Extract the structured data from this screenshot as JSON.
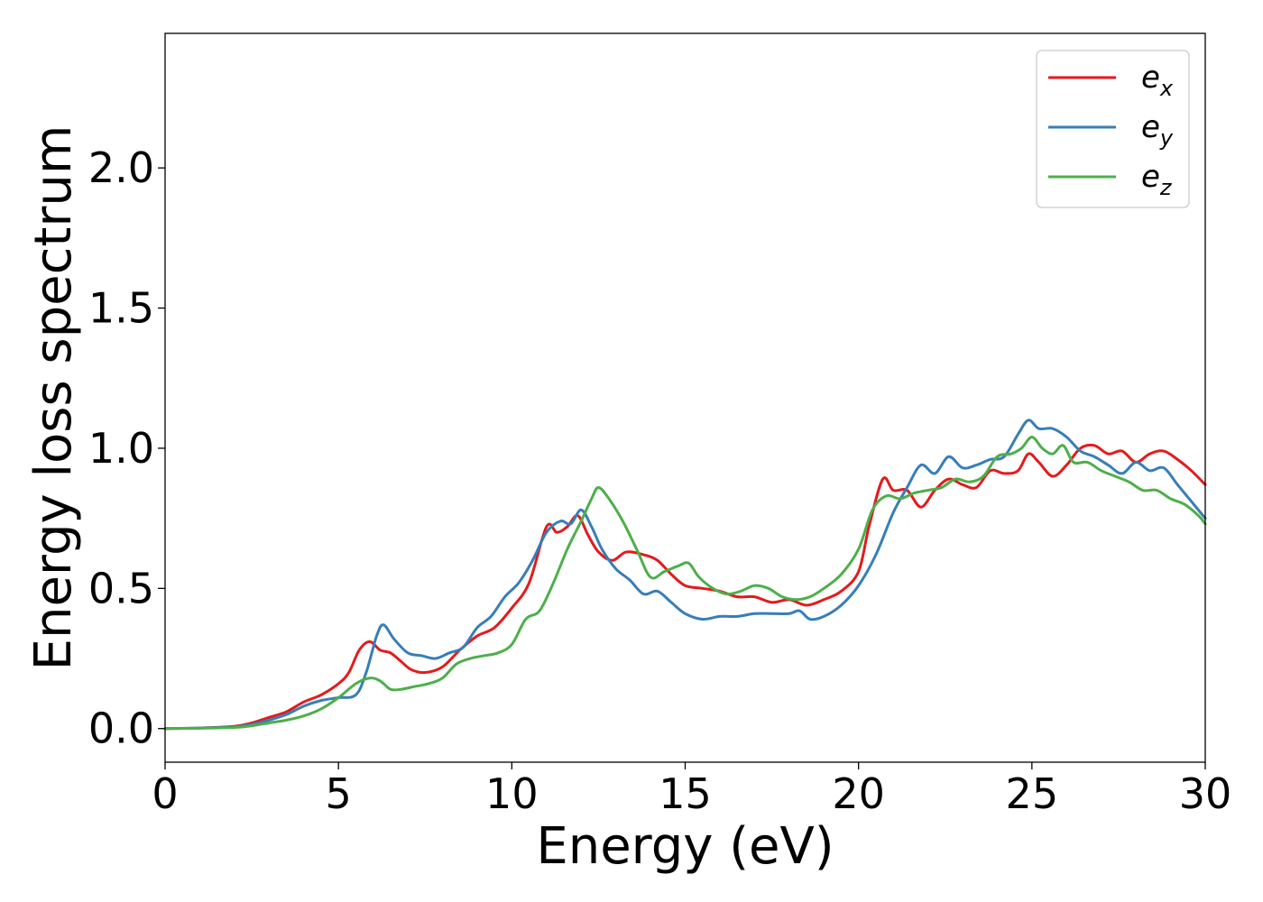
{
  "chart_data": {
    "type": "line",
    "xlabel": "Energy (eV)",
    "ylabel": "Energy loss spectrum",
    "xlim": [
      0,
      30
    ],
    "ylim": [
      -0.12,
      2.48
    ],
    "xticks": [
      0,
      5,
      10,
      15,
      20,
      25,
      30
    ],
    "xtick_labels": [
      "0",
      "5",
      "10",
      "15",
      "20",
      "25",
      "30"
    ],
    "yticks": [
      0.0,
      0.5,
      1.0,
      1.5,
      2.0
    ],
    "ytick_labels": [
      "0.0",
      "0.5",
      "1.0",
      "1.5",
      "2.0"
    ],
    "grid": false,
    "legend_position": "top-right",
    "series": [
      {
        "name": "e_x",
        "label_main": "e",
        "label_sub": "x",
        "color": "#e41a1c",
        "x": [
          0,
          1,
          2,
          2.5,
          3,
          3.5,
          4,
          4.5,
          5,
          5.3,
          5.6,
          5.9,
          6.2,
          6.5,
          6.8,
          7.1,
          7.5,
          8,
          8.5,
          9,
          9.5,
          10,
          10.5,
          11,
          11.3,
          11.6,
          11.9,
          12.2,
          12.5,
          12.9,
          13.3,
          13.8,
          14.2,
          14.6,
          15,
          15.5,
          16,
          16.5,
          17,
          17.5,
          18,
          18.5,
          19,
          19.5,
          20,
          20.3,
          20.7,
          21,
          21.4,
          21.8,
          22.2,
          22.6,
          23,
          23.4,
          23.8,
          24.2,
          24.6,
          24.9,
          25.2,
          25.6,
          26,
          26.4,
          26.8,
          27.2,
          27.6,
          28,
          28.4,
          28.8,
          29.2,
          29.6,
          30
        ],
        "y": [
          0,
          0.002,
          0.008,
          0.02,
          0.04,
          0.06,
          0.095,
          0.12,
          0.16,
          0.2,
          0.28,
          0.31,
          0.28,
          0.27,
          0.24,
          0.21,
          0.2,
          0.22,
          0.28,
          0.33,
          0.36,
          0.43,
          0.52,
          0.72,
          0.7,
          0.72,
          0.76,
          0.69,
          0.63,
          0.6,
          0.63,
          0.62,
          0.6,
          0.55,
          0.51,
          0.5,
          0.49,
          0.47,
          0.47,
          0.45,
          0.46,
          0.44,
          0.46,
          0.49,
          0.56,
          0.72,
          0.89,
          0.85,
          0.85,
          0.79,
          0.85,
          0.89,
          0.87,
          0.86,
          0.92,
          0.91,
          0.92,
          0.98,
          0.95,
          0.9,
          0.94,
          1.0,
          1.01,
          0.98,
          0.99,
          0.95,
          0.98,
          0.99,
          0.96,
          0.92,
          0.87
        ]
      },
      {
        "name": "e_y",
        "label_main": "e",
        "label_sub": "y",
        "color": "#377eb8",
        "x": [
          0,
          1,
          2,
          2.5,
          3,
          3.5,
          4,
          4.5,
          5,
          5.5,
          5.8,
          6.1,
          6.3,
          6.6,
          7,
          7.4,
          7.8,
          8.2,
          8.6,
          9,
          9.4,
          9.8,
          10.2,
          10.6,
          11,
          11.4,
          11.7,
          12,
          12.3,
          12.6,
          13,
          13.4,
          13.8,
          14.2,
          14.6,
          15,
          15.5,
          16,
          16.5,
          17,
          17.5,
          18,
          18.3,
          18.6,
          19,
          19.5,
          20,
          20.5,
          21,
          21.4,
          21.8,
          22.2,
          22.6,
          23,
          23.4,
          23.8,
          24.2,
          24.6,
          24.9,
          25.2,
          25.6,
          26,
          26.4,
          26.8,
          27.2,
          27.6,
          28,
          28.4,
          28.8,
          29.2,
          29.6,
          30
        ],
        "y": [
          0,
          0.002,
          0.006,
          0.015,
          0.03,
          0.05,
          0.08,
          0.1,
          0.11,
          0.12,
          0.2,
          0.33,
          0.37,
          0.32,
          0.27,
          0.26,
          0.25,
          0.27,
          0.29,
          0.36,
          0.4,
          0.47,
          0.52,
          0.6,
          0.7,
          0.74,
          0.73,
          0.78,
          0.72,
          0.64,
          0.57,
          0.53,
          0.48,
          0.49,
          0.45,
          0.41,
          0.39,
          0.4,
          0.4,
          0.41,
          0.41,
          0.41,
          0.42,
          0.39,
          0.4,
          0.44,
          0.51,
          0.62,
          0.77,
          0.86,
          0.94,
          0.91,
          0.97,
          0.93,
          0.94,
          0.96,
          0.97,
          1.05,
          1.1,
          1.07,
          1.07,
          1.04,
          0.99,
          0.97,
          0.94,
          0.91,
          0.95,
          0.92,
          0.93,
          0.87,
          0.81,
          0.75
        ]
      },
      {
        "name": "e_z",
        "label_main": "e",
        "label_sub": "z",
        "color": "#4daf4a",
        "x": [
          0,
          1,
          2,
          2.5,
          3,
          3.5,
          4,
          4.5,
          5,
          5.5,
          5.9,
          6.2,
          6.5,
          6.8,
          7.2,
          7.6,
          8,
          8.4,
          8.8,
          9.2,
          9.6,
          10,
          10.4,
          10.8,
          11.2,
          11.6,
          12,
          12.3,
          12.5,
          12.8,
          13.2,
          13.6,
          14,
          14.4,
          14.8,
          15.1,
          15.4,
          15.8,
          16.2,
          16.6,
          17,
          17.4,
          17.8,
          18.2,
          18.6,
          19,
          19.5,
          20,
          20.4,
          20.8,
          21.2,
          21.6,
          22,
          22.4,
          22.8,
          23.2,
          23.6,
          24,
          24.4,
          24.7,
          25,
          25.3,
          25.6,
          25.9,
          26.2,
          26.6,
          27,
          27.4,
          27.8,
          28.2,
          28.6,
          29,
          29.4,
          29.8,
          30
        ],
        "y": [
          0,
          0.001,
          0.004,
          0.01,
          0.02,
          0.03,
          0.045,
          0.07,
          0.11,
          0.16,
          0.18,
          0.17,
          0.14,
          0.14,
          0.15,
          0.16,
          0.18,
          0.23,
          0.25,
          0.26,
          0.27,
          0.3,
          0.39,
          0.42,
          0.52,
          0.64,
          0.74,
          0.82,
          0.86,
          0.82,
          0.74,
          0.64,
          0.54,
          0.56,
          0.58,
          0.59,
          0.54,
          0.5,
          0.48,
          0.49,
          0.51,
          0.5,
          0.47,
          0.46,
          0.47,
          0.5,
          0.55,
          0.64,
          0.78,
          0.83,
          0.82,
          0.84,
          0.85,
          0.86,
          0.89,
          0.88,
          0.9,
          0.97,
          0.98,
          1.0,
          1.04,
          1.0,
          0.98,
          1.01,
          0.95,
          0.95,
          0.92,
          0.9,
          0.88,
          0.85,
          0.85,
          0.82,
          0.8,
          0.76,
          0.73
        ]
      }
    ]
  }
}
